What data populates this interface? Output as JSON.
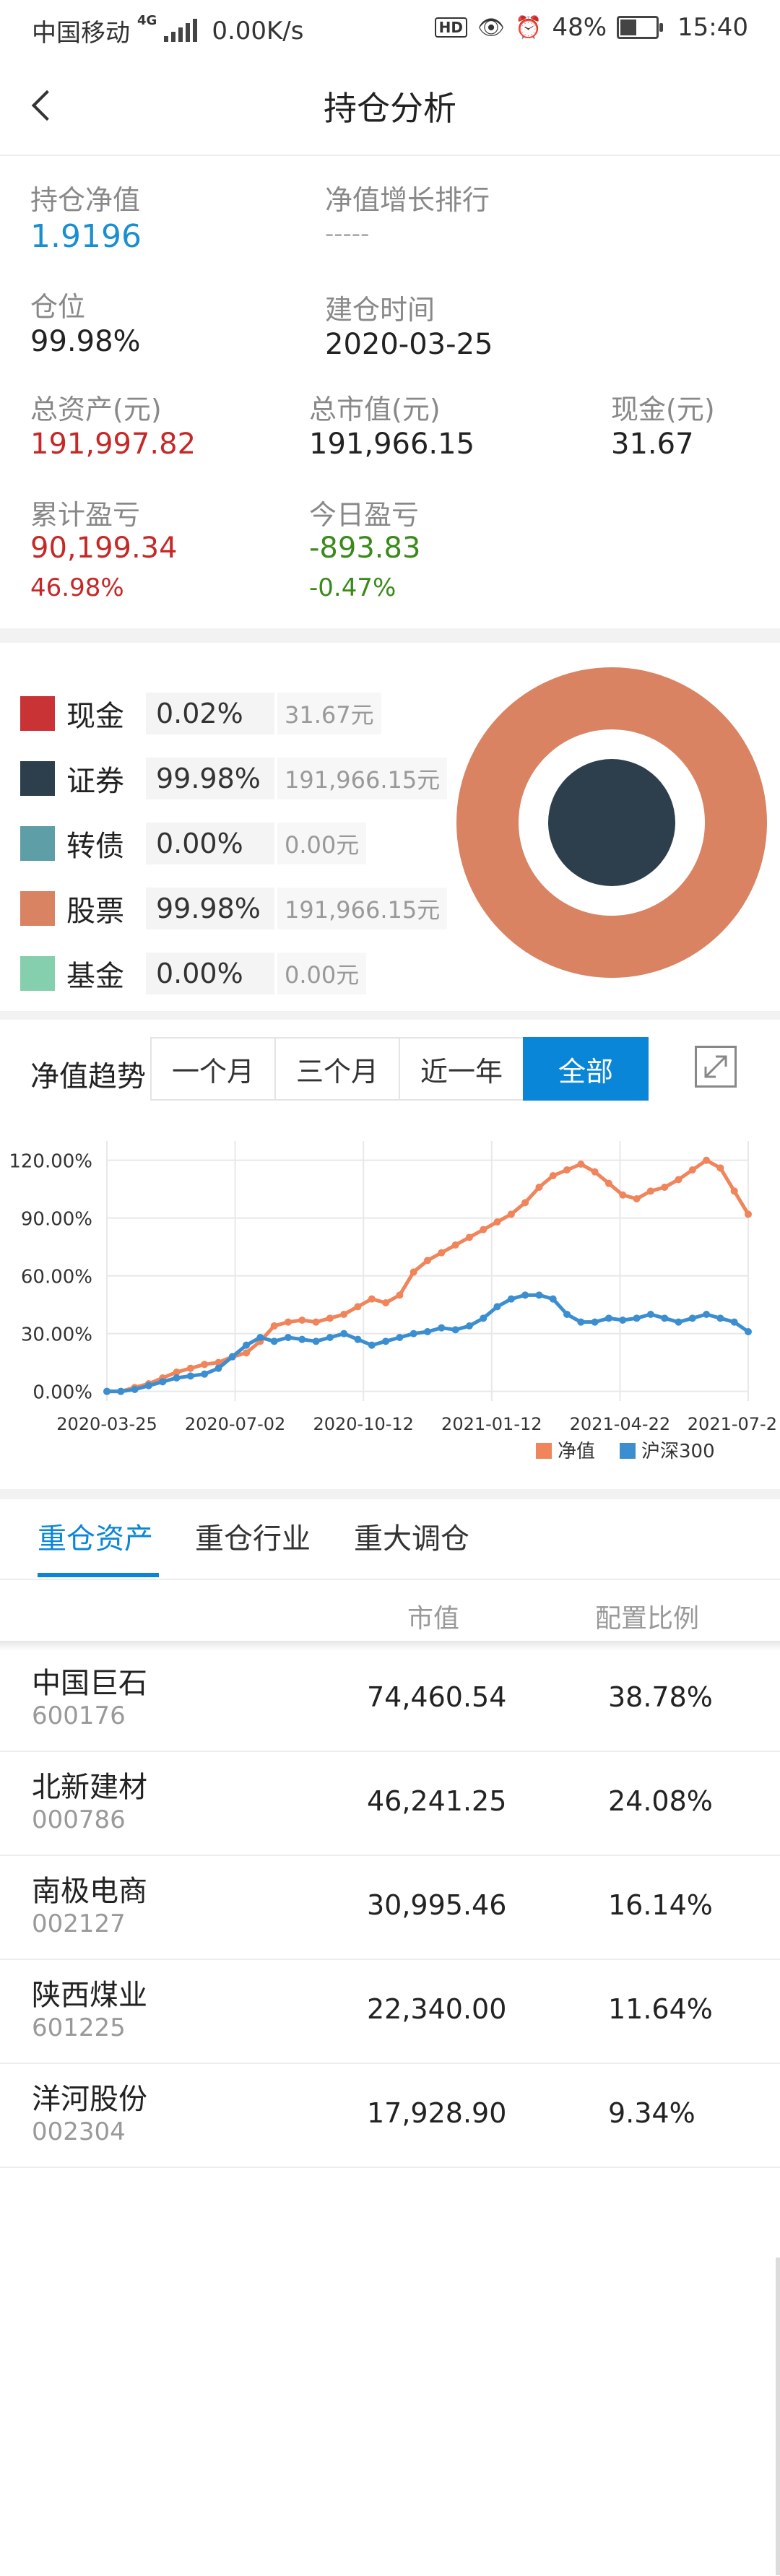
{
  "status_bar": {
    "carrier": "中国移动",
    "network": "4G",
    "speed": "0.00K/s",
    "hd": "HD",
    "battery": "48%",
    "battery_level": 0.48,
    "time": "15:40"
  },
  "header": {
    "title": "持仓分析"
  },
  "summary": {
    "nav_label": "持仓净值",
    "nav_value": "1.9196",
    "rank_label": "净值增长排行",
    "rank_value": "-----",
    "position_label": "仓位",
    "position_value": "99.98%",
    "start_label": "建仓时间",
    "start_value": "2020-03-25",
    "total_assets_label": "总资产(元)",
    "total_assets_value": "191,997.82",
    "market_value_label": "总市值(元)",
    "market_value_value": "191,966.15",
    "cash_label": "现金(元)",
    "cash_value": "31.67",
    "cum_pl_label": "累计盈亏",
    "cum_pl_value": "90,199.34",
    "cum_pl_pct": "46.98%",
    "today_pl_label": "今日盈亏",
    "today_pl_value": "-893.83",
    "today_pl_pct": "-0.47%"
  },
  "allocation": [
    {
      "name": "现金",
      "pct": "0.02%",
      "amount": "31.67元",
      "color": "#c93336"
    },
    {
      "name": "证券",
      "pct": "99.98%",
      "amount": "191,966.15元",
      "color": "#2d3e4c"
    },
    {
      "name": "转债",
      "pct": "0.00%",
      "amount": "0.00元",
      "color": "#5d9ea7"
    },
    {
      "name": "股票",
      "pct": "99.98%",
      "amount": "191,966.15元",
      "color": "#d98363"
    },
    {
      "name": "基金",
      "pct": "0.00%",
      "amount": "0.00元",
      "color": "#86cfae"
    }
  ],
  "trend": {
    "label": "净值趋势",
    "tabs": [
      "一个月",
      "三个月",
      "近一年",
      "全部"
    ],
    "active_tab": 3
  },
  "chart_data": {
    "type": "line",
    "x_ticks": [
      "2020-03-25",
      "2020-07-02",
      "2020-10-12",
      "2021-01-12",
      "2021-04-22",
      "2021-07-2"
    ],
    "y_ticks": [
      "0.00%",
      "30.00%",
      "60.00%",
      "90.00%",
      "120.00%"
    ],
    "ylim": [
      -5,
      130
    ],
    "legend_position": "bottom-right",
    "series": [
      {
        "name": "净值",
        "color": "#f0845a",
        "values": [
          0,
          0,
          2,
          4,
          7,
          10,
          12,
          14,
          15,
          18,
          20,
          26,
          34,
          36,
          37,
          36,
          38,
          40,
          44,
          48,
          46,
          50,
          62,
          68,
          72,
          76,
          80,
          84,
          88,
          92,
          98,
          106,
          112,
          115,
          118,
          114,
          108,
          102,
          100,
          104,
          106,
          110,
          115,
          120,
          116,
          104,
          92
        ]
      },
      {
        "name": "沪深300",
        "color": "#3b8ed0",
        "values": [
          0,
          0,
          1,
          3,
          5,
          7,
          8,
          9,
          12,
          18,
          24,
          28,
          26,
          28,
          27,
          26,
          28,
          30,
          27,
          24,
          26,
          28,
          30,
          31,
          33,
          32,
          34,
          38,
          44,
          48,
          50,
          50,
          48,
          40,
          36,
          36,
          38,
          37,
          38,
          40,
          38,
          36,
          38,
          40,
          38,
          36,
          31
        ]
      }
    ]
  },
  "holdings": {
    "tabs": [
      "重仓资产",
      "重仓行业",
      "重大调仓"
    ],
    "active_tab": 0,
    "columns": [
      "市值",
      "配置比例"
    ],
    "rows": [
      {
        "name": "中国巨石",
        "code": "600176",
        "value": "74,460.54",
        "ratio": "38.78%"
      },
      {
        "name": "北新建材",
        "code": "000786",
        "value": "46,241.25",
        "ratio": "24.08%"
      },
      {
        "name": "南极电商",
        "code": "002127",
        "value": "30,995.46",
        "ratio": "16.14%"
      },
      {
        "name": "陕西煤业",
        "code": "601225",
        "value": "22,340.00",
        "ratio": "11.64%"
      },
      {
        "name": "洋河股份",
        "code": "002304",
        "value": "17,928.90",
        "ratio": "9.34%"
      }
    ]
  }
}
